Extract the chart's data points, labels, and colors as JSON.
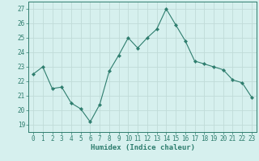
{
  "x": [
    0,
    1,
    2,
    3,
    4,
    5,
    6,
    7,
    8,
    9,
    10,
    11,
    12,
    13,
    14,
    15,
    16,
    17,
    18,
    19,
    20,
    21,
    22,
    23
  ],
  "y": [
    22.5,
    23.0,
    21.5,
    21.6,
    20.5,
    20.1,
    19.2,
    20.4,
    22.7,
    23.8,
    25.0,
    24.3,
    25.0,
    25.6,
    27.0,
    25.9,
    24.8,
    23.4,
    23.2,
    23.0,
    22.8,
    22.1,
    21.9,
    20.9
  ],
  "line_color": "#2e7d6e",
  "marker": "D",
  "marker_size": 2.2,
  "bg_color": "#d6f0ee",
  "grid_color": "#c0dbd8",
  "xlabel": "Humidex (Indice chaleur)",
  "xlim": [
    -0.5,
    23.5
  ],
  "ylim": [
    18.5,
    27.5
  ],
  "yticks": [
    19,
    20,
    21,
    22,
    23,
    24,
    25,
    26,
    27
  ],
  "xticks": [
    0,
    1,
    2,
    3,
    4,
    5,
    6,
    7,
    8,
    9,
    10,
    11,
    12,
    13,
    14,
    15,
    16,
    17,
    18,
    19,
    20,
    21,
    22,
    23
  ],
  "tick_color": "#2e7d6e",
  "xlabel_fontsize": 6.5,
  "tick_fontsize": 5.5
}
